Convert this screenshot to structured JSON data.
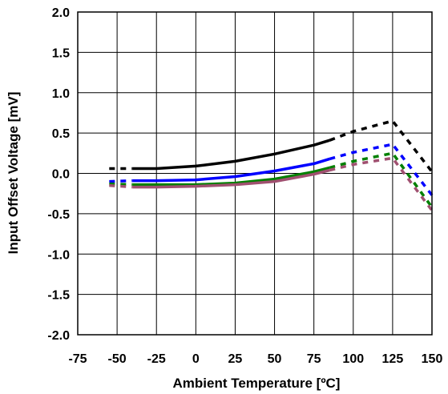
{
  "chart_data": {
    "type": "line",
    "xlabel": "Ambient Temperature [ºC]",
    "ylabel": "Input Offset Voltage [mV]",
    "xlim": [
      -75,
      150
    ],
    "ylim": [
      -2.0,
      2.0
    ],
    "x_ticks": [
      "-75",
      "-50",
      "-25",
      "0",
      "25",
      "50",
      "75",
      "100",
      "125",
      "150"
    ],
    "y_ticks": [
      "2.0",
      "1.5",
      "1.0",
      "0.5",
      "0.0",
      "-0.5",
      "-1.0",
      "-1.5",
      "-2.0"
    ],
    "grid": true,
    "legend": "none",
    "series": [
      {
        "color": "#000000",
        "values": [
          [
            -55,
            0.06
          ],
          [
            -40,
            0.06
          ],
          [
            -25,
            0.06
          ],
          [
            0,
            0.09
          ],
          [
            25,
            0.15
          ],
          [
            50,
            0.24
          ],
          [
            75,
            0.35
          ],
          [
            85,
            0.41
          ],
          [
            100,
            0.52
          ],
          [
            125,
            0.65
          ],
          [
            150,
            0.02
          ]
        ],
        "dashed_before": -40,
        "dashed_after": 85
      },
      {
        "color": "#0000ff",
        "values": [
          [
            -55,
            -0.1
          ],
          [
            -40,
            -0.09
          ],
          [
            -25,
            -0.09
          ],
          [
            0,
            -0.08
          ],
          [
            25,
            -0.04
          ],
          [
            50,
            0.03
          ],
          [
            75,
            0.12
          ],
          [
            85,
            0.18
          ],
          [
            100,
            0.26
          ],
          [
            125,
            0.36
          ],
          [
            150,
            -0.27
          ]
        ],
        "dashed_before": -40,
        "dashed_after": 85
      },
      {
        "color": "#008000",
        "values": [
          [
            -55,
            -0.13
          ],
          [
            -40,
            -0.14
          ],
          [
            -25,
            -0.14
          ],
          [
            0,
            -0.14
          ],
          [
            25,
            -0.12
          ],
          [
            50,
            -0.07
          ],
          [
            75,
            0.02
          ],
          [
            85,
            0.07
          ],
          [
            100,
            0.15
          ],
          [
            125,
            0.25
          ],
          [
            150,
            -0.42
          ]
        ],
        "dashed_before": -40,
        "dashed_after": 85
      },
      {
        "color": "#a05070",
        "values": [
          [
            -55,
            -0.15
          ],
          [
            -40,
            -0.17
          ],
          [
            -25,
            -0.17
          ],
          [
            0,
            -0.16
          ],
          [
            25,
            -0.14
          ],
          [
            50,
            -0.1
          ],
          [
            75,
            -0.01
          ],
          [
            85,
            0.04
          ],
          [
            100,
            0.11
          ],
          [
            125,
            0.19
          ],
          [
            150,
            -0.46
          ]
        ],
        "dashed_before": -40,
        "dashed_after": 85
      }
    ]
  }
}
